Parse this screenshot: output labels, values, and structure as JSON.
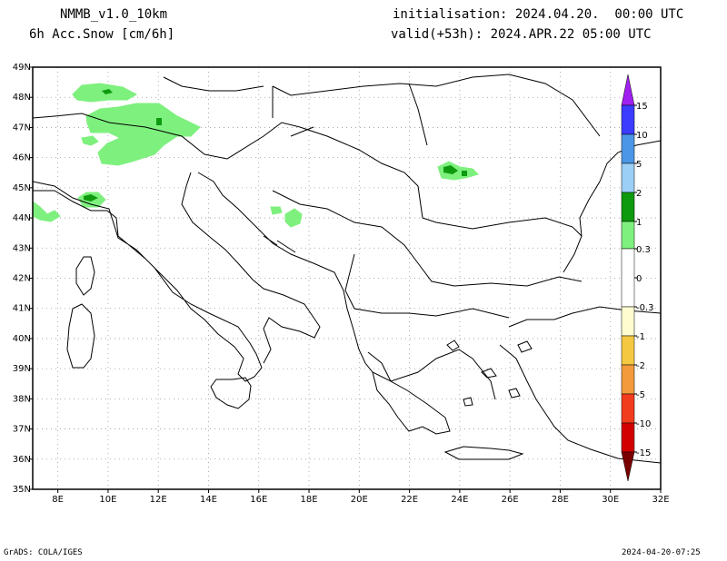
{
  "header": {
    "model": "NMMB_v1.0_10km",
    "field": "6h Acc.Snow [cm/6h]",
    "init": "initialisation: 2024.04.20.  00:00 UTC",
    "valid": "valid(+53h): 2024.APR.22 05:00 UTC"
  },
  "map": {
    "lon_range": [
      7,
      32
    ],
    "lat_range": [
      35,
      49
    ],
    "lon_ticks": [
      "8E",
      "10E",
      "12E",
      "14E",
      "16E",
      "18E",
      "20E",
      "22E",
      "24E",
      "26E",
      "28E",
      "30E",
      "32E"
    ],
    "lat_ticks": [
      "35N",
      "36N",
      "37N",
      "38N",
      "39N",
      "40N",
      "41N",
      "42N",
      "43N",
      "44N",
      "45N",
      "46N",
      "47N",
      "48N",
      "49N"
    ],
    "grid": "dotted"
  },
  "legend": {
    "labels": [
      "15",
      "10",
      "5",
      "2",
      "1",
      "0.3",
      "0",
      "-0.3",
      "-1",
      "-2",
      "-5",
      "-10",
      "-15"
    ],
    "colors": {
      "c15": "#a020f0",
      "c10": "#3c3cff",
      "c5": "#4b96e6",
      "c2": "#9ccff5",
      "c1": "#0e9a0e",
      "c03": "#7ef07e",
      "c0": "#ffffff",
      "n03": "#fffcd0",
      "n1": "#f5c842",
      "n2": "#f29a3c",
      "n5": "#f23c1e",
      "n10": "#d20000",
      "n15": "#7a0000"
    }
  },
  "footer": {
    "left": "GrADS: COLA/IGES",
    "right": "2024-04-20-07:25"
  }
}
